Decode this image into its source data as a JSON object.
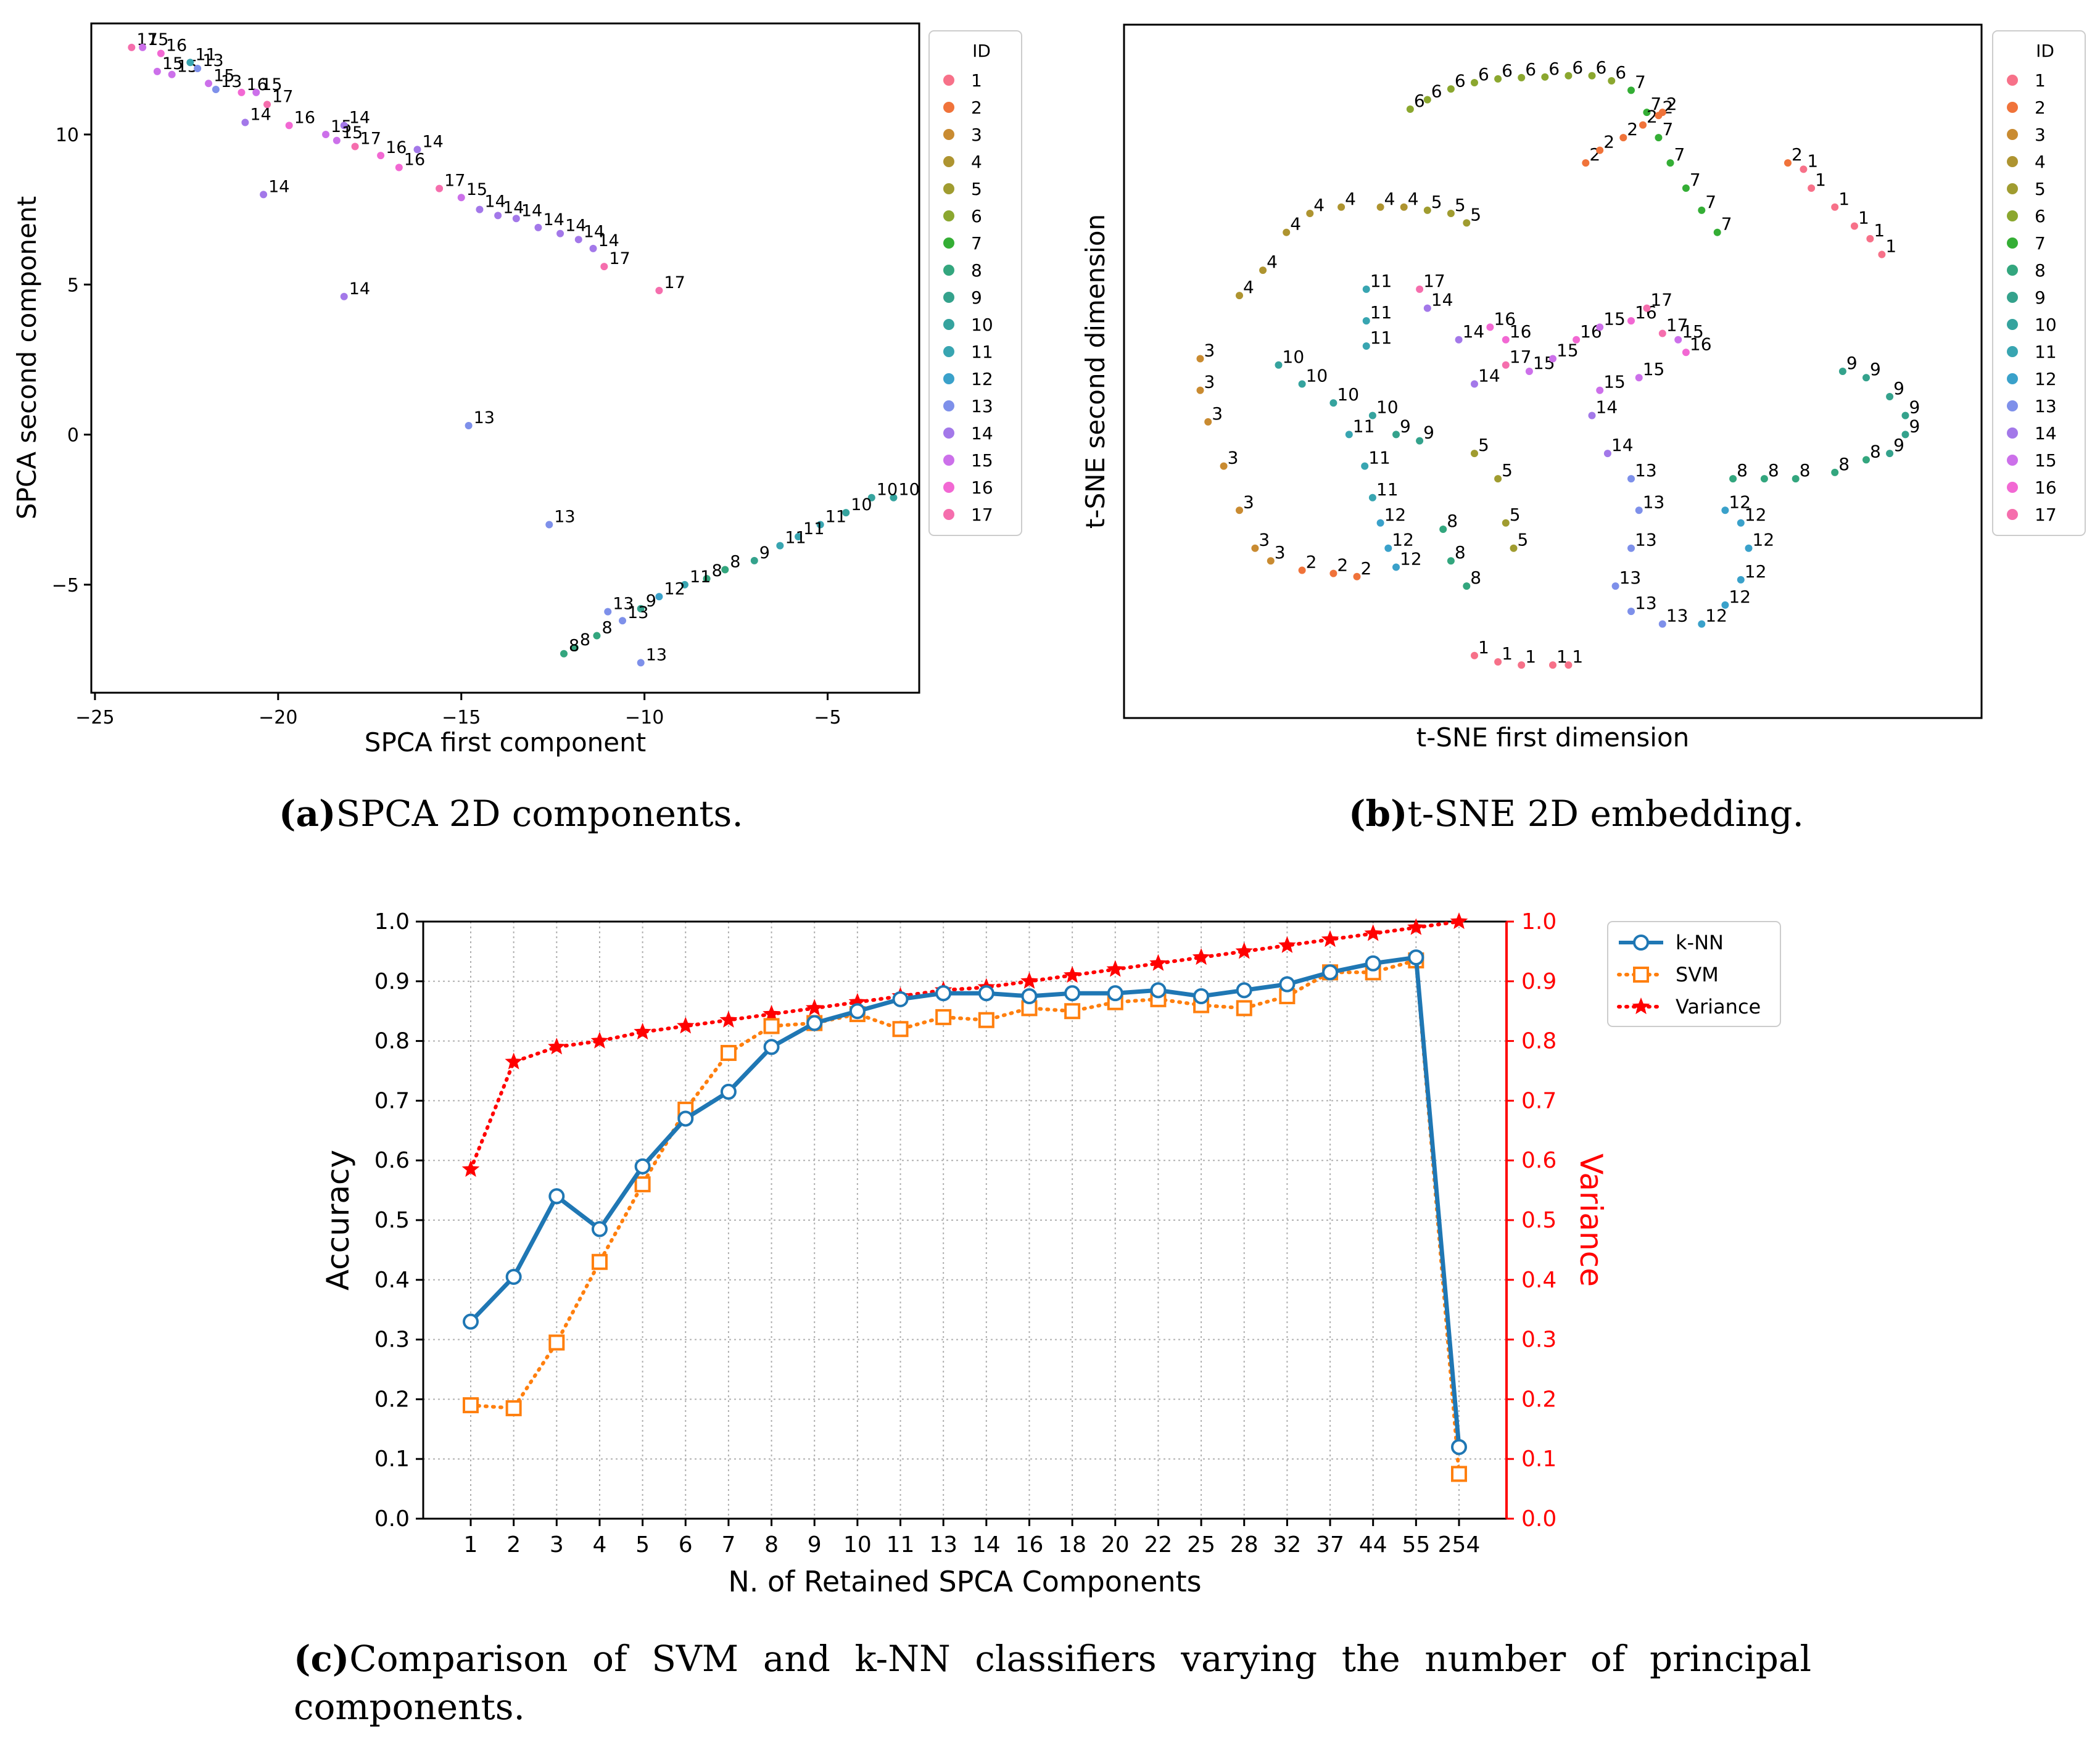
{
  "panel_a": {
    "caption_label": "(a)",
    "caption_text": "SPCA 2D components.",
    "title": "",
    "xlabel": "SPCA first component",
    "ylabel": "SPCA second component",
    "xticks": [
      -25,
      -20,
      -15,
      -10,
      -5
    ],
    "yticks": [
      10,
      5,
      0,
      -5
    ],
    "xlim": [
      -25.1,
      -2.5
    ],
    "ylim": [
      -8.6,
      13.7
    ]
  },
  "panel_b": {
    "caption_label": "(b)",
    "caption_text": "t-SNE 2D embedding.",
    "xlabel": "t-SNE first dimension",
    "ylabel": "t-SNE second dimension"
  },
  "panel_c": {
    "caption_label": "(c)",
    "caption_text": "Comparison of SVM and k-NN classifiers varying the number of principal components.",
    "xlabel": "N. of Retained SPCA Components",
    "ylabel_left": "Accuracy",
    "ylabel_right": "Variance"
  },
  "legend_title": "ID",
  "id_colors": {
    "1": "#f77189",
    "2": "#f0733a",
    "3": "#c98b31",
    "4": "#ae9430",
    "5": "#a09c30",
    "6": "#8ba72f",
    "7": "#34ae35",
    "8": "#33a67e",
    "9": "#34a28c",
    "10": "#35a39e",
    "11": "#38a5b1",
    "12": "#3aa1ca",
    "13": "#7e90ea",
    "14": "#a378e9",
    "15": "#cc70ea",
    "16": "#f268d3",
    "17": "#f56ead"
  },
  "chart_data": [
    {
      "type": "scatter",
      "title": "",
      "xlabel": "SPCA first component",
      "ylabel": "SPCA second component",
      "xlim": [
        -25.1,
        -2.5
      ],
      "ylim": [
        -8.6,
        13.7
      ],
      "legend_title": "ID",
      "legend_labels": [
        "1",
        "2",
        "3",
        "4",
        "5",
        "6",
        "7",
        "8",
        "9",
        "10",
        "11",
        "12",
        "13",
        "14",
        "15",
        "16",
        "17"
      ],
      "points": [
        {
          "id": "17",
          "x": -24.0,
          "y": 12.9
        },
        {
          "id": "15",
          "x": -23.7,
          "y": 12.9
        },
        {
          "id": "16",
          "x": -23.2,
          "y": 12.7
        },
        {
          "id": "15",
          "x": -23.3,
          "y": 12.1
        },
        {
          "id": "15",
          "x": -22.9,
          "y": 12.0
        },
        {
          "id": "11",
          "x": -22.4,
          "y": 12.4
        },
        {
          "id": "13",
          "x": -22.2,
          "y": 12.2
        },
        {
          "id": "15",
          "x": -21.9,
          "y": 11.7
        },
        {
          "id": "13",
          "x": -21.7,
          "y": 11.5
        },
        {
          "id": "16",
          "x": -21.0,
          "y": 11.4
        },
        {
          "id": "15",
          "x": -20.6,
          "y": 11.4
        },
        {
          "id": "17",
          "x": -20.3,
          "y": 11.0
        },
        {
          "id": "14",
          "x": -20.9,
          "y": 10.4
        },
        {
          "id": "16",
          "x": -19.7,
          "y": 10.3
        },
        {
          "id": "15",
          "x": -18.7,
          "y": 10.0
        },
        {
          "id": "14",
          "x": -18.2,
          "y": 10.3
        },
        {
          "id": "15",
          "x": -18.4,
          "y": 9.8
        },
        {
          "id": "17",
          "x": -17.9,
          "y": 9.6
        },
        {
          "id": "16",
          "x": -17.2,
          "y": 9.3
        },
        {
          "id": "16",
          "x": -16.7,
          "y": 8.9
        },
        {
          "id": "14",
          "x": -16.2,
          "y": 9.5
        },
        {
          "id": "14",
          "x": -20.4,
          "y": 8.0
        },
        {
          "id": "17",
          "x": -15.6,
          "y": 8.2
        },
        {
          "id": "15",
          "x": -15.0,
          "y": 7.9
        },
        {
          "id": "14",
          "x": -14.5,
          "y": 7.5
        },
        {
          "id": "14",
          "x": -14.0,
          "y": 7.3
        },
        {
          "id": "14",
          "x": -13.5,
          "y": 7.2
        },
        {
          "id": "14",
          "x": -12.9,
          "y": 6.9
        },
        {
          "id": "14",
          "x": -12.3,
          "y": 6.7
        },
        {
          "id": "14",
          "x": -11.8,
          "y": 6.5
        },
        {
          "id": "14",
          "x": -11.4,
          "y": 6.2
        },
        {
          "id": "17",
          "x": -11.1,
          "y": 5.6
        },
        {
          "id": "17",
          "x": -9.6,
          "y": 4.8
        },
        {
          "id": "14",
          "x": -18.2,
          "y": 4.6
        },
        {
          "id": "13",
          "x": -14.8,
          "y": 0.3
        },
        {
          "id": "13",
          "x": -12.6,
          "y": -3.0
        },
        {
          "id": "10",
          "x": -3.2,
          "y": -2.1
        },
        {
          "id": "10",
          "x": -3.8,
          "y": -2.1
        },
        {
          "id": "10",
          "x": -4.5,
          "y": -2.6
        },
        {
          "id": "11",
          "x": -5.2,
          "y": -3.0
        },
        {
          "id": "11",
          "x": -5.8,
          "y": -3.4
        },
        {
          "id": "11",
          "x": -6.3,
          "y": -3.7
        },
        {
          "id": "9",
          "x": -7.0,
          "y": -4.2
        },
        {
          "id": "8",
          "x": -7.8,
          "y": -4.5
        },
        {
          "id": "8",
          "x": -8.3,
          "y": -4.8
        },
        {
          "id": "11",
          "x": -8.9,
          "y": -5.0
        },
        {
          "id": "12",
          "x": -9.6,
          "y": -5.4
        },
        {
          "id": "9",
          "x": -10.1,
          "y": -5.8
        },
        {
          "id": "13",
          "x": -10.6,
          "y": -6.2
        },
        {
          "id": "13",
          "x": -11.0,
          "y": -5.9
        },
        {
          "id": "8",
          "x": -11.3,
          "y": -6.7
        },
        {
          "id": "8",
          "x": -11.9,
          "y": -7.1
        },
        {
          "id": "8",
          "x": -12.2,
          "y": -7.3
        },
        {
          "id": "13",
          "x": -10.1,
          "y": -7.6
        }
      ]
    },
    {
      "type": "scatter",
      "title": "",
      "xlabel": "t-SNE first dimension",
      "ylabel": "t-SNE second dimension",
      "xlim": [
        0,
        1
      ],
      "ylim": [
        0,
        1
      ],
      "legend_title": "ID",
      "legend_labels": [
        "1",
        "2",
        "3",
        "4",
        "5",
        "6",
        "7",
        "8",
        "9",
        "10",
        "11",
        "12",
        "13",
        "14",
        "15",
        "16",
        "17"
      ],
      "points": [
        {
          "id": "6",
          "x": 0.318,
          "y": 0.915
        },
        {
          "id": "6",
          "x": 0.34,
          "y": 0.93
        },
        {
          "id": "6",
          "x": 0.37,
          "y": 0.947
        },
        {
          "id": "6",
          "x": 0.4,
          "y": 0.957
        },
        {
          "id": "6",
          "x": 0.43,
          "y": 0.963
        },
        {
          "id": "6",
          "x": 0.46,
          "y": 0.965
        },
        {
          "id": "6",
          "x": 0.49,
          "y": 0.966
        },
        {
          "id": "6",
          "x": 0.52,
          "y": 0.968
        },
        {
          "id": "6",
          "x": 0.55,
          "y": 0.968
        },
        {
          "id": "6",
          "x": 0.575,
          "y": 0.96
        },
        {
          "id": "7",
          "x": 0.6,
          "y": 0.945
        },
        {
          "id": "7",
          "x": 0.62,
          "y": 0.91
        },
        {
          "id": "7",
          "x": 0.635,
          "y": 0.87
        },
        {
          "id": "7",
          "x": 0.65,
          "y": 0.83
        },
        {
          "id": "7",
          "x": 0.67,
          "y": 0.79
        },
        {
          "id": "7",
          "x": 0.69,
          "y": 0.755
        },
        {
          "id": "7",
          "x": 0.71,
          "y": 0.72
        },
        {
          "id": "2",
          "x": 0.542,
          "y": 0.83
        },
        {
          "id": "2",
          "x": 0.56,
          "y": 0.85
        },
        {
          "id": "2",
          "x": 0.59,
          "y": 0.87
        },
        {
          "id": "2",
          "x": 0.615,
          "y": 0.89
        },
        {
          "id": "2",
          "x": 0.635,
          "y": 0.905
        },
        {
          "id": "2",
          "x": 0.64,
          "y": 0.91
        },
        {
          "id": "2",
          "x": 0.8,
          "y": 0.83
        },
        {
          "id": "1",
          "x": 0.82,
          "y": 0.82
        },
        {
          "id": "1",
          "x": 0.83,
          "y": 0.79
        },
        {
          "id": "1",
          "x": 0.86,
          "y": 0.76
        },
        {
          "id": "1",
          "x": 0.885,
          "y": 0.73
        },
        {
          "id": "1",
          "x": 0.905,
          "y": 0.71
        },
        {
          "id": "1",
          "x": 0.92,
          "y": 0.685
        },
        {
          "id": "3",
          "x": 0.05,
          "y": 0.52
        },
        {
          "id": "3",
          "x": 0.05,
          "y": 0.47
        },
        {
          "id": "3",
          "x": 0.06,
          "y": 0.42
        },
        {
          "id": "3",
          "x": 0.08,
          "y": 0.35
        },
        {
          "id": "3",
          "x": 0.1,
          "y": 0.28
        },
        {
          "id": "3",
          "x": 0.12,
          "y": 0.22
        },
        {
          "id": "3",
          "x": 0.14,
          "y": 0.2
        },
        {
          "id": "2",
          "x": 0.18,
          "y": 0.185
        },
        {
          "id": "2",
          "x": 0.22,
          "y": 0.18
        },
        {
          "id": "2",
          "x": 0.25,
          "y": 0.175
        },
        {
          "id": "4",
          "x": 0.1,
          "y": 0.62
        },
        {
          "id": "4",
          "x": 0.13,
          "y": 0.66
        },
        {
          "id": "4",
          "x": 0.16,
          "y": 0.72
        },
        {
          "id": "4",
          "x": 0.19,
          "y": 0.75
        },
        {
          "id": "4",
          "x": 0.23,
          "y": 0.76
        },
        {
          "id": "4",
          "x": 0.28,
          "y": 0.76
        },
        {
          "id": "4",
          "x": 0.31,
          "y": 0.76
        },
        {
          "id": "5",
          "x": 0.34,
          "y": 0.755
        },
        {
          "id": "5",
          "x": 0.37,
          "y": 0.75
        },
        {
          "id": "5",
          "x": 0.39,
          "y": 0.735
        },
        {
          "id": "10",
          "x": 0.15,
          "y": 0.51
        },
        {
          "id": "10",
          "x": 0.18,
          "y": 0.48
        },
        {
          "id": "10",
          "x": 0.22,
          "y": 0.45
        },
        {
          "id": "10",
          "x": 0.27,
          "y": 0.43
        },
        {
          "id": "11",
          "x": 0.24,
          "y": 0.4
        },
        {
          "id": "11",
          "x": 0.26,
          "y": 0.35
        },
        {
          "id": "11",
          "x": 0.27,
          "y": 0.3
        },
        {
          "id": "11",
          "x": 0.262,
          "y": 0.63
        },
        {
          "id": "11",
          "x": 0.262,
          "y": 0.58
        },
        {
          "id": "11",
          "x": 0.262,
          "y": 0.54
        },
        {
          "id": "12",
          "x": 0.28,
          "y": 0.26
        },
        {
          "id": "12",
          "x": 0.29,
          "y": 0.22
        },
        {
          "id": "12",
          "x": 0.3,
          "y": 0.19
        },
        {
          "id": "9",
          "x": 0.3,
          "y": 0.4
        },
        {
          "id": "9",
          "x": 0.33,
          "y": 0.39
        },
        {
          "id": "8",
          "x": 0.36,
          "y": 0.25
        },
        {
          "id": "8",
          "x": 0.37,
          "y": 0.2
        },
        {
          "id": "8",
          "x": 0.39,
          "y": 0.16
        },
        {
          "id": "5",
          "x": 0.4,
          "y": 0.37
        },
        {
          "id": "5",
          "x": 0.43,
          "y": 0.33
        },
        {
          "id": "5",
          "x": 0.44,
          "y": 0.26
        },
        {
          "id": "5",
          "x": 0.45,
          "y": 0.22
        },
        {
          "id": "14",
          "x": 0.34,
          "y": 0.6
        },
        {
          "id": "14",
          "x": 0.38,
          "y": 0.55
        },
        {
          "id": "14",
          "x": 0.4,
          "y": 0.48
        },
        {
          "id": "16",
          "x": 0.42,
          "y": 0.57
        },
        {
          "id": "16",
          "x": 0.44,
          "y": 0.55
        },
        {
          "id": "17",
          "x": 0.33,
          "y": 0.63
        },
        {
          "id": "17",
          "x": 0.44,
          "y": 0.51
        },
        {
          "id": "15",
          "x": 0.47,
          "y": 0.5
        },
        {
          "id": "15",
          "x": 0.5,
          "y": 0.52
        },
        {
          "id": "16",
          "x": 0.53,
          "y": 0.55
        },
        {
          "id": "15",
          "x": 0.56,
          "y": 0.57
        },
        {
          "id": "16",
          "x": 0.6,
          "y": 0.58
        },
        {
          "id": "17",
          "x": 0.62,
          "y": 0.6
        },
        {
          "id": "17",
          "x": 0.64,
          "y": 0.56
        },
        {
          "id": "15",
          "x": 0.66,
          "y": 0.55
        },
        {
          "id": "16",
          "x": 0.67,
          "y": 0.53
        },
        {
          "id": "15",
          "x": 0.61,
          "y": 0.49
        },
        {
          "id": "15",
          "x": 0.56,
          "y": 0.47
        },
        {
          "id": "14",
          "x": 0.55,
          "y": 0.43
        },
        {
          "id": "14",
          "x": 0.57,
          "y": 0.37
        },
        {
          "id": "13",
          "x": 0.6,
          "y": 0.33
        },
        {
          "id": "13",
          "x": 0.61,
          "y": 0.28
        },
        {
          "id": "13",
          "x": 0.6,
          "y": 0.22
        },
        {
          "id": "13",
          "x": 0.58,
          "y": 0.16
        },
        {
          "id": "13",
          "x": 0.6,
          "y": 0.12
        },
        {
          "id": "13",
          "x": 0.64,
          "y": 0.1
        },
        {
          "id": "12",
          "x": 0.69,
          "y": 0.1
        },
        {
          "id": "12",
          "x": 0.72,
          "y": 0.13
        },
        {
          "id": "12",
          "x": 0.74,
          "y": 0.17
        },
        {
          "id": "12",
          "x": 0.75,
          "y": 0.22
        },
        {
          "id": "12",
          "x": 0.74,
          "y": 0.26
        },
        {
          "id": "12",
          "x": 0.72,
          "y": 0.28
        },
        {
          "id": "9",
          "x": 0.87,
          "y": 0.5
        },
        {
          "id": "9",
          "x": 0.9,
          "y": 0.49
        },
        {
          "id": "9",
          "x": 0.93,
          "y": 0.46
        },
        {
          "id": "9",
          "x": 0.95,
          "y": 0.43
        },
        {
          "id": "9",
          "x": 0.95,
          "y": 0.4
        },
        {
          "id": "9",
          "x": 0.93,
          "y": 0.37
        },
        {
          "id": "8",
          "x": 0.9,
          "y": 0.36
        },
        {
          "id": "8",
          "x": 0.86,
          "y": 0.34
        },
        {
          "id": "8",
          "x": 0.81,
          "y": 0.33
        },
        {
          "id": "8",
          "x": 0.77,
          "y": 0.33
        },
        {
          "id": "8",
          "x": 0.73,
          "y": 0.33
        },
        {
          "id": "1",
          "x": 0.4,
          "y": 0.05
        },
        {
          "id": "1",
          "x": 0.43,
          "y": 0.04
        },
        {
          "id": "1",
          "x": 0.46,
          "y": 0.035
        },
        {
          "id": "1",
          "x": 0.5,
          "y": 0.035
        },
        {
          "id": "1",
          "x": 0.52,
          "y": 0.035
        }
      ]
    },
    {
      "type": "line",
      "title": "",
      "xlabel": "N. of Retained SPCA Components",
      "ylabel": "Accuracy",
      "ylabel_right": "Variance",
      "categories": [
        "1",
        "2",
        "3",
        "4",
        "5",
        "6",
        "7",
        "8",
        "9",
        "10",
        "11",
        "13",
        "14",
        "16",
        "18",
        "20",
        "22",
        "25",
        "28",
        "32",
        "37",
        "44",
        "55",
        "254"
      ],
      "ylim": [
        0.0,
        1.0
      ],
      "yticks": [
        0.0,
        0.1,
        0.2,
        0.3,
        0.4,
        0.5,
        0.6,
        0.7,
        0.8,
        0.9,
        1.0
      ],
      "series": [
        {
          "name": "k-NN",
          "axis": "left",
          "color": "#1f77b4",
          "style": "solid",
          "marker": "circle",
          "values": [
            0.33,
            0.405,
            0.54,
            0.485,
            0.59,
            0.67,
            0.715,
            0.79,
            0.83,
            0.85,
            0.87,
            0.88,
            0.88,
            0.875,
            0.88,
            0.88,
            0.885,
            0.875,
            0.885,
            0.895,
            0.915,
            0.93,
            0.94,
            0.12
          ]
        },
        {
          "name": "SVM",
          "axis": "left",
          "color": "#ff7f0e",
          "style": "dotted",
          "marker": "square",
          "values": [
            0.19,
            0.185,
            0.295,
            0.43,
            0.56,
            0.685,
            0.78,
            0.825,
            0.83,
            0.845,
            0.82,
            0.84,
            0.835,
            0.855,
            0.85,
            0.865,
            0.87,
            0.86,
            0.855,
            0.875,
            0.915,
            0.915,
            0.935,
            0.075
          ]
        },
        {
          "name": "Variance",
          "axis": "right",
          "color": "#ff0000",
          "style": "dotted",
          "marker": "star",
          "values": [
            0.585,
            0.765,
            0.79,
            0.8,
            0.815,
            0.825,
            0.835,
            0.845,
            0.855,
            0.865,
            0.875,
            0.885,
            0.89,
            0.9,
            0.91,
            0.92,
            0.93,
            0.94,
            0.95,
            0.96,
            0.97,
            0.98,
            0.99,
            1.0
          ]
        }
      ],
      "legend": [
        "k-NN",
        "SVM",
        "Variance"
      ],
      "legend_position": "top-right",
      "grid": true
    }
  ]
}
